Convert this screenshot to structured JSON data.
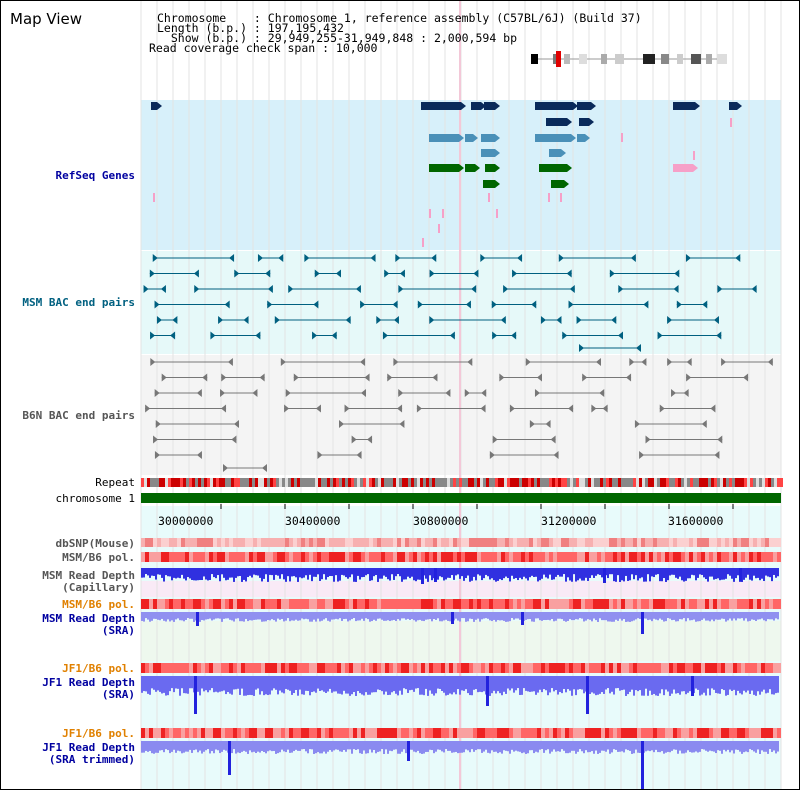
{
  "title": "Map View",
  "info": {
    "chromosome": "Chromosome    : Chromosome 1, reference assembly (C57BL/6J) (Build 37)",
    "length": "Length (b.p.) : 197,195,432",
    "show": "  Show (b.p.) : 29,949,255-31,949,848 : 2,000,594 bp",
    "coverage": "Read coverage check span : 10,000"
  },
  "tracks": {
    "refseq": "RefSeq Genes",
    "msm_bac": "MSM BAC end pairs",
    "b6n_bac": "B6N BAC end pairs",
    "repeat": "Repeat",
    "chromosome": "chromosome 1",
    "dbsnp": "dbSNP(Mouse)",
    "msm_pol": "MSM/B6 pol.",
    "msm_depth_cap_1": "MSM Read Depth",
    "msm_depth_cap_2": "(Capillary)",
    "msm_pol_sra": "MSM/B6 pol.",
    "msm_depth_sra_1": "MSM Read Depth",
    "msm_depth_sra_2": "(SRA)",
    "jf1_pol": "JF1/B6 pol.",
    "jf1_depth_1": "JF1 Read Depth",
    "jf1_depth_2": "(SRA)",
    "jf1_pol_trim": "JF1/B6 pol.",
    "jf1_depth_trim_1": "JF1 Read Depth",
    "jf1_depth_trim_2": "(SRA trimmed)"
  },
  "axis_ticks": [
    "30000000",
    "30400000",
    "30800000",
    "31200000",
    "31600000"
  ],
  "colors": {
    "label_blue": "#0000a0",
    "label_teal": "#006080",
    "label_gray": "#555555",
    "label_orange": "#e08000",
    "refseq_bg": "#d7f0fa",
    "bac_bg": "#e6f9f9",
    "chromosome_green": "#006600",
    "depth_blue": "#3333ee"
  }
}
